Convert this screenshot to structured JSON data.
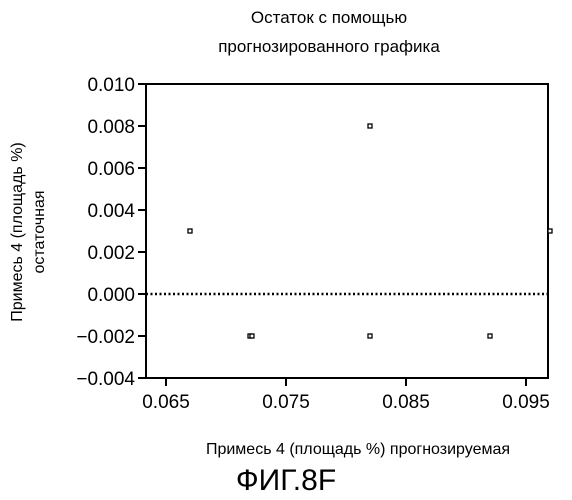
{
  "chart_data": {
    "type": "scatter",
    "title_lines": [
      "Остаток с помощью",
      "прогнозированного графика"
    ],
    "xlabel": "Примесь 4 (площадь %) прогнозируемая",
    "ylabel_lines": [
      "Примесь 4 (площадь %)",
      "остаточная"
    ],
    "xlim": [
      0.065,
      0.1
    ],
    "ylim": [
      -0.004,
      0.01
    ],
    "x_ticks": [
      0.065,
      0.075,
      0.085,
      0.095
    ],
    "x_tick_labels": [
      "0.065",
      "0.075",
      "0.085",
      "0.095"
    ],
    "y_ticks": [
      0.01,
      0.008,
      0.006,
      0.004,
      0.002,
      0.0,
      -0.002,
      -0.004
    ],
    "y_tick_labels": [
      "0.010",
      "0.008",
      "0.006",
      "0.004",
      "0.002",
      "0.000",
      "−0.002",
      "−0.004"
    ],
    "reference_line": {
      "y": 0.0,
      "style": "dotted"
    },
    "points": [
      {
        "x": 0.067,
        "y": 0.003
      },
      {
        "x": 0.072,
        "y": -0.002
      },
      {
        "x": 0.072,
        "y": -0.002
      },
      {
        "x": 0.082,
        "y": 0.008
      },
      {
        "x": 0.082,
        "y": -0.002
      },
      {
        "x": 0.092,
        "y": -0.002
      },
      {
        "x": 0.097,
        "y": 0.003
      }
    ],
    "marker": "open-square",
    "grid": false
  },
  "figure_label": "ФИГ.8F"
}
